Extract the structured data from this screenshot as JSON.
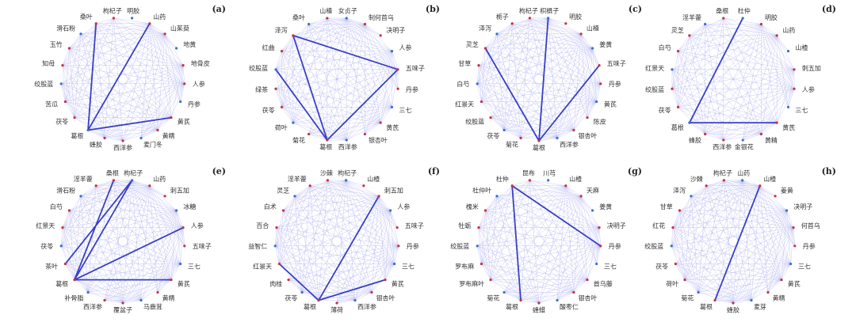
{
  "panels": [
    {
      "label": "(a)",
      "nodes": [
        "明胶",
        "山药",
        "山茱萸",
        "地黄",
        "地骨皮",
        "人参",
        "丹参",
        "黄芪",
        "黄精",
        "麦门冬",
        "西洋参",
        "蜂胶",
        "葛根",
        "茯苓",
        "苦瓜",
        "绞股蓝",
        "知母",
        "玉竹",
        "滑石粉",
        "桑叶",
        "枸杞子"
      ]
    },
    {
      "label": "(b)",
      "nodes": [
        "女贞子",
        "制何首乌",
        "决明子",
        "人参",
        "五味子",
        "丹参",
        "三七",
        "黄芪",
        "银杏叶",
        "西洋参",
        "葛根",
        "菊花",
        "荷叶",
        "茯苓",
        "绿茶",
        "绞股蓝",
        "红曲",
        "泽泻",
        "桑叶",
        "山楂"
      ]
    },
    {
      "label": "(c)",
      "nodes": [
        "枳椇子",
        "明胶",
        "山楂",
        "姜黄",
        "五味子",
        "丹参",
        "黄芪",
        "陈皮",
        "银杏叶",
        "西洋参",
        "葛根",
        "菊花",
        "茯苓",
        "绞股蓝",
        "红景天",
        "白芍",
        "甘草",
        "灵芝",
        "泽泻",
        "栀子",
        "枸杞子"
      ]
    },
    {
      "label": "(d)",
      "nodes": [
        "杜仲",
        "明胶",
        "山药",
        "山楂",
        "刺五加",
        "人参",
        "三七",
        "黄芪",
        "黄精",
        "金银花",
        "西洋参",
        "蜂胶",
        "葛根",
        "茯苓",
        "绞股蓝",
        "红景天",
        "白芍",
        "灵芝",
        "淫羊藿",
        "桑根"
      ]
    },
    {
      "label": "(e)",
      "nodes": [
        "枸杞子",
        "山药",
        "刺五加",
        "冰糖",
        "人参",
        "五味子",
        "三七",
        "黄芪",
        "黄精",
        "马鹿茸",
        "覆盆子",
        "西洋参",
        "补骨脂",
        "葛根",
        "茶叶",
        "茯苓",
        "红景天",
        "白芍",
        "滑石粉",
        "淫羊藿",
        "桑根"
      ]
    },
    {
      "label": "(f)",
      "nodes": [
        "枸杞子",
        "山楂",
        "刺五加",
        "人参",
        "五味子",
        "丹参",
        "三七",
        "黄芪",
        "银杏叶",
        "西洋参",
        "薄荷",
        "葛根",
        "茯苓",
        "肉桂",
        "红景天",
        "益智仁",
        "百合",
        "白术",
        "灵芝",
        "淫羊藿",
        "沙棘"
      ]
    },
    {
      "label": "(g)",
      "nodes": [
        "川芎",
        "山楂",
        "天麻",
        "姜黄",
        "决明子",
        "丹参",
        "三七",
        "首乌藤",
        "银杏叶",
        "酸枣仁",
        "蜂蜡",
        "葛根",
        "菊花",
        "罗布麻叶",
        "罗布麻",
        "绞股蓝",
        "牡蛎",
        "槐米",
        "杜仲叶",
        "杜仲",
        "昆布"
      ]
    },
    {
      "label": "(h)",
      "nodes": [
        "山药",
        "山楂",
        "姜黄",
        "决明子",
        "何首乌",
        "丹参",
        "三七",
        "黄芪",
        "黄精",
        "麦芽",
        "蜂胶",
        "葛根",
        "菊花",
        "荷叶",
        "茯苓",
        "绞股蓝",
        "红花",
        "甘草",
        "泽泻",
        "沙棘",
        "枸杞子"
      ]
    }
  ]
}
